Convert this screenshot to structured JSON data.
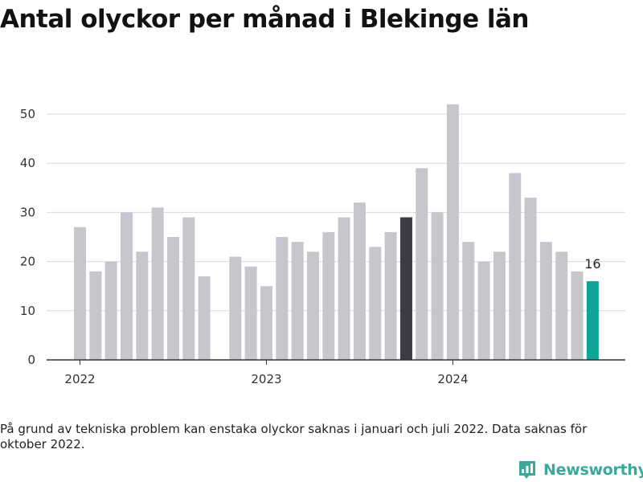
{
  "title": "Antal olyckor per månad i Blekinge län",
  "footnote": "På grund av tekniska problem kan enstaka olyckor saknas i januari och juli 2022. Data saknas för oktober 2022.",
  "brand": {
    "name": "Newsworthy",
    "icon": "newsworthy-logo-icon",
    "color": "#3aa89a"
  },
  "colors": {
    "default": "#c7c6cd",
    "highlight": "#3d3b45",
    "latest": "#0fa498",
    "grid": "#d8d8d8",
    "axis": "#333333"
  },
  "chart_data": {
    "type": "bar",
    "title": "Antal olyckor per månad i Blekinge län",
    "xlabel": "",
    "ylabel": "",
    "ylim": [
      0,
      52
    ],
    "yticks": [
      0,
      10,
      20,
      30,
      40,
      50
    ],
    "xtick_labels": [
      "2022",
      "2023",
      "2024"
    ],
    "grid": true,
    "categories": [
      "2022-01",
      "2022-02",
      "2022-03",
      "2022-04",
      "2022-05",
      "2022-06",
      "2022-07",
      "2022-08",
      "2022-09",
      "2022-10",
      "2022-11",
      "2022-12",
      "2023-01",
      "2023-02",
      "2023-03",
      "2023-04",
      "2023-05",
      "2023-06",
      "2023-07",
      "2023-08",
      "2023-09",
      "2023-10",
      "2023-11",
      "2023-12",
      "2024-01",
      "2024-02",
      "2024-03",
      "2024-04",
      "2024-05",
      "2024-06",
      "2024-07",
      "2024-08",
      "2024-09",
      "2024-10"
    ],
    "values": [
      27,
      18,
      20,
      30,
      22,
      31,
      25,
      29,
      17,
      null,
      21,
      19,
      15,
      25,
      24,
      22,
      26,
      29,
      32,
      23,
      26,
      29,
      39,
      30,
      52,
      24,
      20,
      22,
      38,
      33,
      24,
      22,
      18,
      16
    ],
    "highlight_category": "2023-10",
    "latest_category": "2024-10",
    "annotations": [
      {
        "category": "2024-10",
        "text": "16"
      }
    ]
  }
}
